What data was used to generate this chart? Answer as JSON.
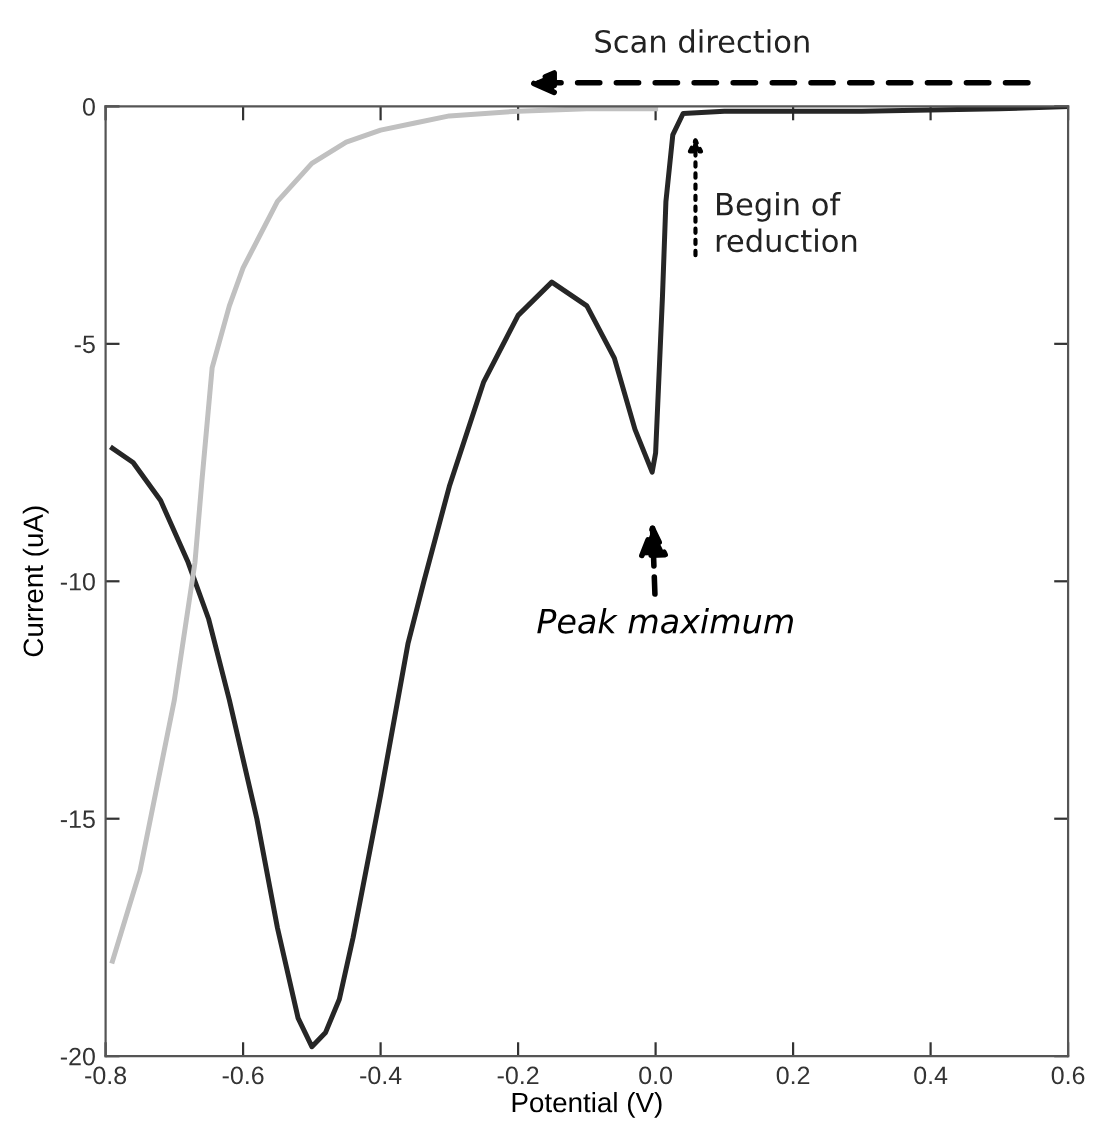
{
  "chart_data": {
    "type": "line",
    "xlabel": "Potential (V)",
    "ylabel": "Current (uA)",
    "xlim": [
      -0.8,
      0.6
    ],
    "ylim": [
      -20,
      0
    ],
    "xticks": [
      -0.8,
      -0.6,
      -0.4,
      -0.2,
      {
        "value": 0,
        "label": "0.0"
      },
      0.2,
      0.4,
      0.6
    ],
    "yticks": [
      -20,
      -15,
      -10,
      -5,
      0
    ],
    "grid": false,
    "legend": false,
    "marker": "none",
    "line_style": "solid",
    "series": [
      {
        "color": "#262626",
        "x": [
          -0.79,
          -0.76,
          -0.72,
          -0.68,
          -0.65,
          -0.62,
          -0.58,
          -0.55,
          -0.52,
          -0.5,
          -0.48,
          -0.46,
          -0.44,
          -0.4,
          -0.36,
          -0.337,
          -0.3,
          -0.25,
          -0.2,
          -0.151,
          -0.1,
          -0.06,
          -0.03,
          -0.005,
          0.0,
          0.01,
          0.015,
          0.025,
          0.04,
          0.1,
          0.3,
          0.5,
          0.6
        ],
        "values": [
          -7.2,
          -7.5,
          -8.3,
          -9.6,
          -10.8,
          -12.5,
          -15.0,
          -17.3,
          -19.2,
          -19.8,
          -19.5,
          -18.8,
          -17.5,
          -14.5,
          -11.3,
          -10.0,
          -8.0,
          -5.8,
          -4.4,
          -3.7,
          -4.2,
          -5.3,
          -6.8,
          -7.7,
          -7.3,
          -4.0,
          -2.0,
          -0.6,
          -0.15,
          -0.1,
          -0.1,
          -0.05,
          0.0
        ]
      },
      {
        "color": "#c0c0c0",
        "x": [
          -0.79,
          -0.75,
          -0.7,
          -0.67,
          -0.66,
          -0.645,
          -0.62,
          -0.6,
          -0.55,
          -0.5,
          -0.45,
          -0.4,
          -0.35,
          -0.3,
          -0.2,
          -0.1,
          0.0
        ],
        "values": [
          -18.0,
          -16.1,
          -12.5,
          -9.6,
          -7.9,
          -5.5,
          -4.2,
          -3.4,
          -2.0,
          -1.2,
          -0.75,
          -0.5,
          -0.35,
          -0.2,
          -0.1,
          -0.05,
          -0.05
        ]
      }
    ],
    "annotations": [
      "Scan direction",
      {
        "text": "Begin of\nreduction",
        "x": 0.058,
        "y": -0.3
      },
      "Peak maximum"
    ]
  }
}
